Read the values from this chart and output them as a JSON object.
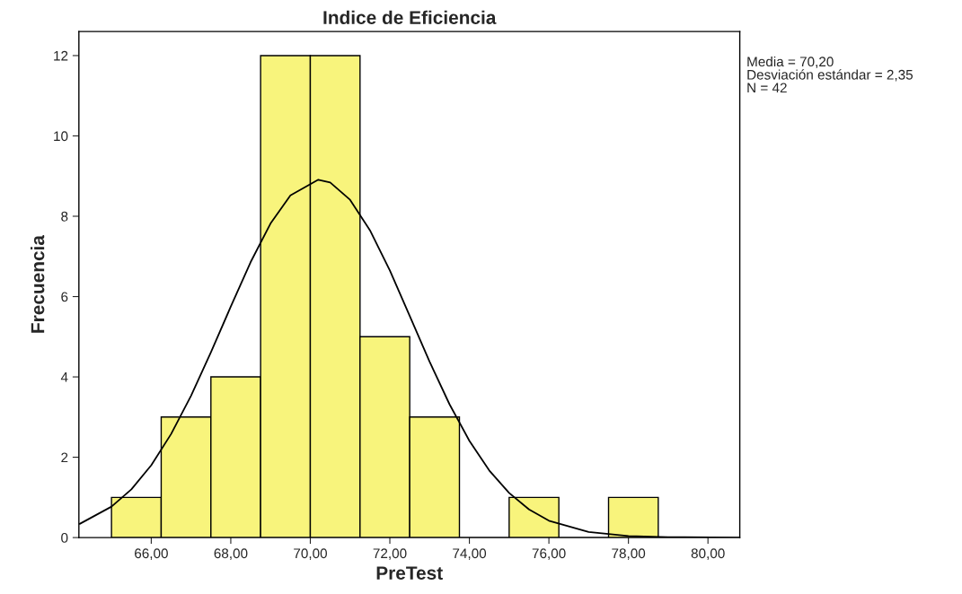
{
  "chart_data": {
    "type": "histogram",
    "title": "Indice de Eficiencia",
    "xlabel": "PreTest",
    "ylabel": "Frecuencia",
    "bins": [
      65.0,
      66.25,
      67.5,
      68.75,
      70.0,
      71.25,
      72.5,
      73.75,
      75.0,
      76.25,
      77.5,
      78.75
    ],
    "values": [
      1,
      3,
      4,
      12,
      12,
      5,
      3,
      0,
      1,
      0,
      1
    ],
    "color": "#f8f47c",
    "series": [
      {
        "type": "line",
        "color": "#000000",
        "x": [
          64.2,
          65,
          65.5,
          66,
          66.5,
          67,
          67.5,
          68,
          68.5,
          69,
          69.5,
          70.2,
          70.5,
          71,
          71.5,
          72,
          72.5,
          73,
          73.5,
          74,
          74.5,
          75,
          75.5,
          76,
          77,
          78,
          79,
          80.8
        ],
        "values": [
          0.34,
          0.77,
          1.2,
          1.8,
          2.58,
          3.53,
          4.61,
          5.75,
          6.86,
          7.82,
          8.52,
          8.91,
          8.84,
          8.41,
          7.65,
          6.65,
          5.52,
          4.38,
          3.32,
          2.41,
          1.67,
          1.11,
          0.7,
          0.42,
          0.14,
          0.04,
          0.01,
          0
        ]
      }
    ],
    "xlim": [
      64.18,
      80.8
    ],
    "ylim": [
      0,
      12.6
    ],
    "xticks": [
      {
        "value": 66,
        "label": "66,00"
      },
      {
        "value": 68,
        "label": "68,00"
      },
      {
        "value": 70,
        "label": "70,00"
      },
      {
        "value": 72,
        "label": "72,00"
      },
      {
        "value": 74,
        "label": "74,00"
      },
      {
        "value": 76,
        "label": "76,00"
      },
      {
        "value": 78,
        "label": "78,00"
      },
      {
        "value": 80,
        "label": "80,00"
      }
    ],
    "yticks": [
      0,
      2,
      4,
      6,
      8,
      10,
      12
    ],
    "grid": false,
    "legend": false,
    "annotations": [
      "Media = 70,20",
      "Desviación estándar = 2,35",
      "N = 42"
    ]
  }
}
